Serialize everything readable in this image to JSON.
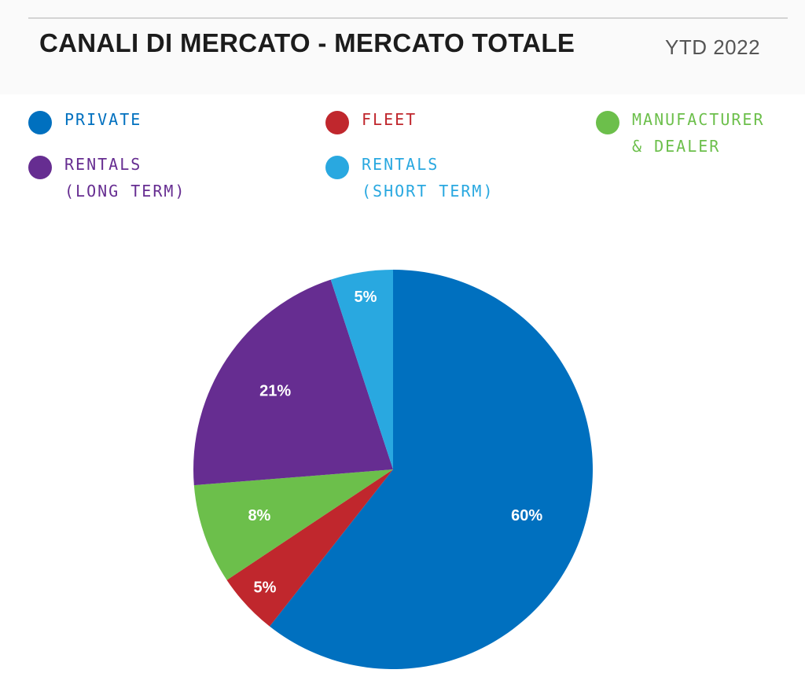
{
  "header": {
    "title": "CANALI DI MERCATO - MERCATO TOTALE",
    "subtitle": "YTD 2022"
  },
  "legend": [
    {
      "lines": [
        "PRIVATE"
      ],
      "color": "#0070BF"
    },
    {
      "lines": [
        "FLEET"
      ],
      "color": "#C0272D"
    },
    {
      "lines": [
        "MANUFACTURER",
        "& DEALER"
      ],
      "color": "#6CBF4B"
    },
    {
      "lines": [
        "RENTALS",
        "(LONG TERM)"
      ],
      "color": "#662D91"
    },
    {
      "lines": [
        "RENTALS",
        "(SHORT TERM)"
      ],
      "color": "#29A8E0"
    }
  ],
  "chart_data": {
    "type": "pie",
    "title": "CANALI DI MERCATO - MERCATO TOTALE",
    "subtitle": "YTD 2022",
    "slices": [
      {
        "name": "PRIVATE",
        "value": 60,
        "label": "60%",
        "color": "#0070BF"
      },
      {
        "name": "FLEET",
        "value": 5,
        "label": "5%",
        "color": "#C0272D"
      },
      {
        "name": "MANUFACTURER & DEALER",
        "value": 8,
        "label": "8%",
        "color": "#6CBF4B"
      },
      {
        "name": "RENTALS (LONG TERM)",
        "value": 21,
        "label": "21%",
        "color": "#662D91"
      },
      {
        "name": "RENTALS (SHORT TERM)",
        "value": 5,
        "label": "5%",
        "color": "#29A8E0"
      }
    ],
    "start": "12 o'clock",
    "direction": "clockwise",
    "legend_position": "top"
  }
}
